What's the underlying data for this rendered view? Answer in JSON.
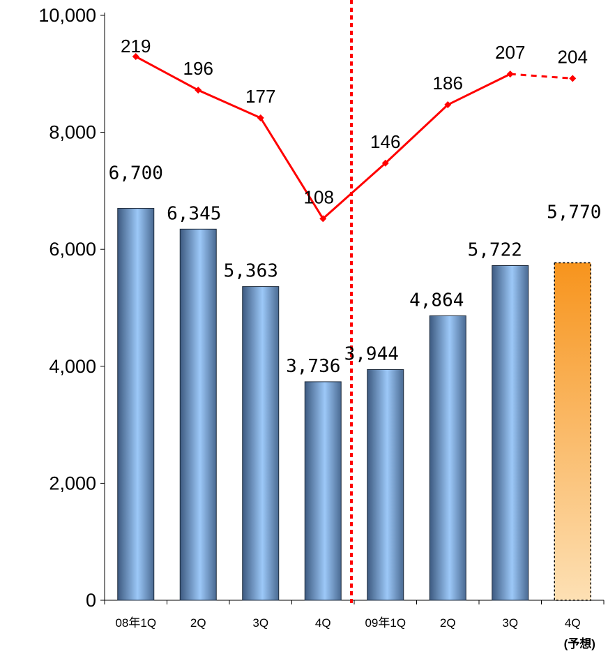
{
  "chart_data": {
    "type": "bar",
    "categories": [
      "08年1Q",
      "2Q",
      "3Q",
      "4Q",
      "09年1Q",
      "2Q",
      "3Q",
      "4Q"
    ],
    "category_notes": [
      "",
      "",
      "",
      "",
      "",
      "",
      "",
      "(予想)"
    ],
    "ylim": [
      0,
      10000
    ],
    "yticks": [
      0,
      2000,
      4000,
      6000,
      8000,
      10000
    ],
    "ytick_labels": [
      "0",
      "2,000",
      "4,000",
      "6,000",
      "8,000",
      "10,000"
    ],
    "series": [
      {
        "type": "bar",
        "values": [
          6700,
          6345,
          5363,
          3736,
          3944,
          4864,
          5722,
          5770
        ],
        "labels": [
          "6,700",
          "6,345",
          "5,363",
          "3,736",
          "3,944",
          "4,864",
          "5,722",
          "5,770"
        ],
        "forecast_index": 7
      },
      {
        "type": "line",
        "values": [
          219,
          196,
          177,
          108,
          146,
          186,
          207,
          204
        ],
        "labels": [
          "219",
          "196",
          "177",
          "108",
          "146",
          "186",
          "207",
          "204"
        ],
        "forecast_index": 7
      }
    ],
    "divider_after_category_index": 3,
    "colors": {
      "bar_dark": "#3d5a80",
      "bar_light": "#9cc8f8",
      "forecast_top": "#f7941d",
      "forecast_bottom": "#fde0b4",
      "line": "#ff0000",
      "divider": "#ff0000"
    }
  }
}
